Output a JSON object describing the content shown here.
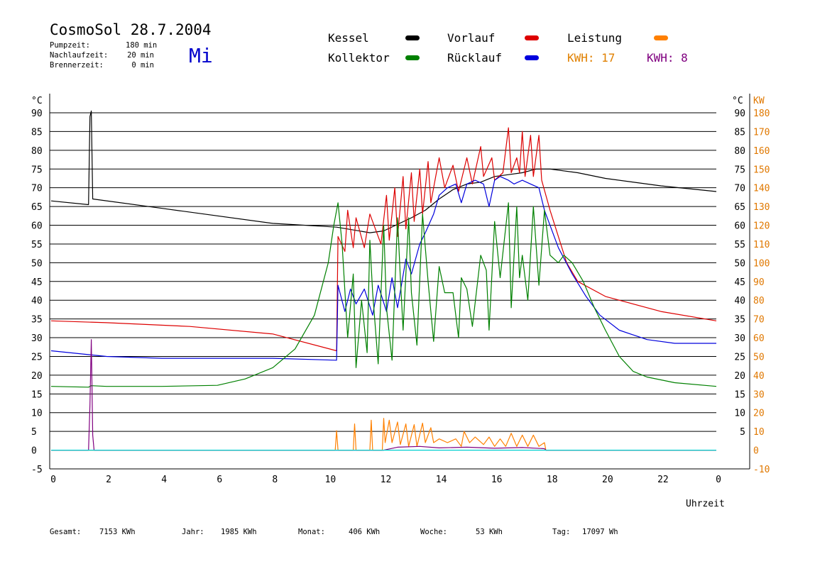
{
  "header": {
    "title": "CosmoSol 28.7.2004",
    "day": "Mi",
    "params": [
      {
        "label": "Pumpzeit:",
        "value": "180 min"
      },
      {
        "label": "Nachlaufzeit:",
        "value": "20 min"
      },
      {
        "label": "Brennerzeit:",
        "value": "0 min"
      }
    ]
  },
  "legend": {
    "kessel": "Kessel",
    "vorlauf": "Vorlauf",
    "leistung": "Leistung",
    "kollektor": "Kollektor",
    "ruecklauf": "Rücklauf",
    "kwh1": "KWH: 17",
    "kwh2": "KWH: 8"
  },
  "footer": {
    "gesamt_label": "Gesamt:",
    "gesamt_value": "7153 KWh",
    "jahr_label": "Jahr:",
    "jahr_value": "1985 KWh",
    "monat_label": "Monat:",
    "monat_value": "406 KWh",
    "woche_label": "Woche:",
    "woche_value": "53 KWh",
    "tag_label": "Tag:",
    "tag_value": "17097 Wh"
  },
  "colors": {
    "kessel": "#000000",
    "vorlauf": "#dd0000",
    "leistung": "#ff8000",
    "kollektor": "#008000",
    "ruecklauf": "#0000dd",
    "kwh2": "#800080",
    "baseline": "#00d0d0",
    "right_axis": "#e07800"
  },
  "chart_data": {
    "type": "line",
    "xlabel": "Uhrzeit",
    "ylabel_left": "°C",
    "ylabel_right": "KW",
    "xlim": [
      0,
      24
    ],
    "ylim_left": [
      -5,
      90
    ],
    "ylim_right": [
      -10,
      180
    ],
    "x_ticks": [
      "0",
      "2",
      "4",
      "6",
      "8",
      "10",
      "12",
      "14",
      "16",
      "18",
      "20",
      "22",
      "0"
    ],
    "y_ticks_left": [
      "90",
      "85",
      "80",
      "75",
      "70",
      "65",
      "60",
      "55",
      "50",
      "45",
      "40",
      "35",
      "30",
      "25",
      "20",
      "15",
      "10",
      "5",
      "0",
      "-5"
    ],
    "y_ticks_right_c": [
      "90",
      "85",
      "80",
      "75",
      "70",
      "65",
      "60",
      "55",
      "50",
      "45",
      "40",
      "35",
      "30",
      "25",
      "20",
      "15",
      "10",
      "5"
    ],
    "y_ticks_right_kw": [
      "180",
      "170",
      "160",
      "150",
      "140",
      "130",
      "120",
      "110",
      "100",
      "90",
      "80",
      "70",
      "60",
      "50",
      "40",
      "30",
      "20",
      "10",
      "0",
      "-10"
    ],
    "grid": true,
    "series": [
      {
        "name": "Kessel",
        "color": "#000000",
        "points": [
          [
            0,
            66.5
          ],
          [
            1.35,
            65.5
          ],
          [
            1.4,
            89
          ],
          [
            1.45,
            90.5
          ],
          [
            1.5,
            67
          ],
          [
            4,
            64.5
          ],
          [
            8,
            60.5
          ],
          [
            10.3,
            59.5
          ],
          [
            11.5,
            58
          ],
          [
            12,
            58.5
          ],
          [
            13,
            62
          ],
          [
            13.5,
            64
          ],
          [
            14,
            67
          ],
          [
            14.5,
            69.5
          ],
          [
            15,
            71
          ],
          [
            15.5,
            71.5
          ],
          [
            16,
            73
          ],
          [
            16.5,
            73.5
          ],
          [
            17,
            74
          ],
          [
            17.5,
            75
          ],
          [
            18,
            75
          ],
          [
            19,
            74
          ],
          [
            20,
            72.5
          ],
          [
            22,
            70.5
          ],
          [
            24,
            69
          ]
        ]
      },
      {
        "name": "Vorlauf",
        "color": "#dd0000",
        "points": [
          [
            0,
            34.5
          ],
          [
            2,
            34
          ],
          [
            5,
            33
          ],
          [
            8,
            31
          ],
          [
            10.3,
            26.5
          ],
          [
            10.35,
            57
          ],
          [
            10.6,
            53
          ],
          [
            10.7,
            64
          ],
          [
            10.9,
            54
          ],
          [
            11,
            62
          ],
          [
            11.3,
            54
          ],
          [
            11.5,
            63
          ],
          [
            11.9,
            55
          ],
          [
            12.1,
            68
          ],
          [
            12.2,
            56
          ],
          [
            12.4,
            70
          ],
          [
            12.5,
            57
          ],
          [
            12.7,
            73
          ],
          [
            12.8,
            59
          ],
          [
            13,
            74
          ],
          [
            13.1,
            61
          ],
          [
            13.3,
            75
          ],
          [
            13.4,
            63
          ],
          [
            13.6,
            77
          ],
          [
            13.7,
            66
          ],
          [
            14,
            78
          ],
          [
            14.2,
            70
          ],
          [
            14.5,
            76
          ],
          [
            14.7,
            69
          ],
          [
            15,
            78
          ],
          [
            15.2,
            71
          ],
          [
            15.5,
            81
          ],
          [
            15.6,
            73
          ],
          [
            15.9,
            78
          ],
          [
            16,
            72
          ],
          [
            16.3,
            74
          ],
          [
            16.5,
            86
          ],
          [
            16.6,
            74
          ],
          [
            16.8,
            78
          ],
          [
            16.9,
            74
          ],
          [
            17,
            85
          ],
          [
            17.1,
            73
          ],
          [
            17.3,
            84
          ],
          [
            17.4,
            73
          ],
          [
            17.6,
            84
          ],
          [
            17.7,
            72
          ],
          [
            18,
            64
          ],
          [
            18.3,
            57
          ],
          [
            18.6,
            50
          ],
          [
            19,
            45
          ],
          [
            20,
            41
          ],
          [
            22,
            37
          ],
          [
            24,
            34.5
          ]
        ]
      },
      {
        "name": "Rücklauf",
        "color": "#0000dd",
        "points": [
          [
            0,
            26.5
          ],
          [
            2,
            25
          ],
          [
            4,
            24.5
          ],
          [
            8,
            24.5
          ],
          [
            10.3,
            24
          ],
          [
            10.35,
            44
          ],
          [
            10.6,
            37
          ],
          [
            10.8,
            43
          ],
          [
            11,
            39
          ],
          [
            11.3,
            43
          ],
          [
            11.6,
            36
          ],
          [
            11.8,
            44
          ],
          [
            12.1,
            37
          ],
          [
            12.3,
            46
          ],
          [
            12.5,
            38
          ],
          [
            12.8,
            51
          ],
          [
            13,
            47
          ],
          [
            13.3,
            55
          ],
          [
            13.5,
            58
          ],
          [
            13.8,
            63
          ],
          [
            14,
            68
          ],
          [
            14.3,
            70
          ],
          [
            14.6,
            71
          ],
          [
            14.8,
            66
          ],
          [
            15,
            71
          ],
          [
            15.3,
            72
          ],
          [
            15.6,
            71
          ],
          [
            15.8,
            65
          ],
          [
            16,
            72
          ],
          [
            16.2,
            73
          ],
          [
            16.5,
            72
          ],
          [
            16.7,
            71
          ],
          [
            17,
            72
          ],
          [
            17.3,
            71
          ],
          [
            17.6,
            70
          ],
          [
            17.8,
            64
          ],
          [
            18.3,
            54
          ],
          [
            18.8,
            47
          ],
          [
            19.3,
            41
          ],
          [
            19.8,
            36
          ],
          [
            20.5,
            32
          ],
          [
            21.5,
            29.5
          ],
          [
            22.5,
            28.5
          ],
          [
            24,
            28.5
          ]
        ]
      },
      {
        "name": "Kollektor",
        "color": "#008000",
        "points": [
          [
            0,
            17
          ],
          [
            1.35,
            16.8
          ],
          [
            1.45,
            17.2
          ],
          [
            2,
            17
          ],
          [
            4,
            17
          ],
          [
            6,
            17.3
          ],
          [
            7,
            19
          ],
          [
            8,
            22
          ],
          [
            8.8,
            27
          ],
          [
            9.5,
            36
          ],
          [
            10,
            50
          ],
          [
            10.2,
            60
          ],
          [
            10.35,
            66
          ],
          [
            10.5,
            55
          ],
          [
            10.7,
            30
          ],
          [
            10.9,
            47
          ],
          [
            11,
            22
          ],
          [
            11.2,
            40
          ],
          [
            11.4,
            26
          ],
          [
            11.5,
            56
          ],
          [
            11.6,
            42
          ],
          [
            11.8,
            23
          ],
          [
            12,
            60
          ],
          [
            12.1,
            38
          ],
          [
            12.3,
            24
          ],
          [
            12.5,
            62
          ],
          [
            12.6,
            46
          ],
          [
            12.7,
            32
          ],
          [
            12.9,
            62
          ],
          [
            13,
            42
          ],
          [
            13.2,
            28
          ],
          [
            13.4,
            63
          ],
          [
            13.6,
            45
          ],
          [
            13.8,
            29
          ],
          [
            14,
            49
          ],
          [
            14.2,
            42
          ],
          [
            14.5,
            42
          ],
          [
            14.7,
            30
          ],
          [
            14.8,
            46
          ],
          [
            15,
            43
          ],
          [
            15.2,
            33
          ],
          [
            15.5,
            52
          ],
          [
            15.7,
            48
          ],
          [
            15.8,
            32
          ],
          [
            16,
            61
          ],
          [
            16.2,
            46
          ],
          [
            16.5,
            66
          ],
          [
            16.6,
            38
          ],
          [
            16.8,
            65
          ],
          [
            16.9,
            46
          ],
          [
            17,
            52
          ],
          [
            17.2,
            40
          ],
          [
            17.4,
            65
          ],
          [
            17.6,
            44
          ],
          [
            17.8,
            64
          ],
          [
            18,
            52
          ],
          [
            18.3,
            50
          ],
          [
            18.5,
            52
          ],
          [
            18.8,
            50
          ],
          [
            19.2,
            45
          ],
          [
            19.6,
            38
          ],
          [
            20,
            32
          ],
          [
            20.5,
            25
          ],
          [
            21,
            21
          ],
          [
            21.5,
            19.5
          ],
          [
            22.5,
            18
          ],
          [
            24,
            17
          ]
        ]
      },
      {
        "name": "Leistung",
        "color": "#ff8000",
        "points": [
          [
            0,
            0
          ],
          [
            10.25,
            0
          ],
          [
            10.3,
            5.2
          ],
          [
            10.35,
            0
          ],
          [
            10.9,
            0
          ],
          [
            10.95,
            7
          ],
          [
            11.0,
            0
          ],
          [
            11.5,
            0
          ],
          [
            11.55,
            8
          ],
          [
            11.6,
            0
          ],
          [
            11.95,
            0
          ],
          [
            12.0,
            8.5
          ],
          [
            12.05,
            2
          ],
          [
            12.2,
            8
          ],
          [
            12.3,
            2
          ],
          [
            12.5,
            7.5
          ],
          [
            12.6,
            1.5
          ],
          [
            12.8,
            7
          ],
          [
            12.9,
            1
          ],
          [
            13.1,
            6.8
          ],
          [
            13.2,
            1
          ],
          [
            13.4,
            7.2
          ],
          [
            13.5,
            2
          ],
          [
            13.7,
            6
          ],
          [
            13.8,
            2
          ],
          [
            14,
            3
          ],
          [
            14.3,
            2
          ],
          [
            14.6,
            3
          ],
          [
            14.8,
            1
          ],
          [
            14.9,
            5
          ],
          [
            15.1,
            2
          ],
          [
            15.3,
            3.5
          ],
          [
            15.6,
            1.5
          ],
          [
            15.8,
            3.5
          ],
          [
            16,
            1
          ],
          [
            16.2,
            3
          ],
          [
            16.4,
            1
          ],
          [
            16.6,
            4.5
          ],
          [
            16.8,
            1
          ],
          [
            17,
            4
          ],
          [
            17.2,
            1
          ],
          [
            17.4,
            4
          ],
          [
            17.6,
            1
          ],
          [
            17.8,
            2
          ],
          [
            17.85,
            0
          ],
          [
            24,
            0
          ]
        ]
      },
      {
        "name": "KWH 8",
        "color": "#800080",
        "points": [
          [
            0,
            0
          ],
          [
            1.35,
            0
          ],
          [
            1.4,
            12
          ],
          [
            1.45,
            29.5
          ],
          [
            1.5,
            4
          ],
          [
            1.55,
            0
          ],
          [
            12,
            0
          ],
          [
            12.5,
            0.8
          ],
          [
            13.3,
            1
          ],
          [
            14,
            0.6
          ],
          [
            15,
            0.8
          ],
          [
            16,
            0.5
          ],
          [
            17,
            0.7
          ],
          [
            17.8,
            0.4
          ],
          [
            17.85,
            0
          ],
          [
            24,
            0
          ]
        ]
      },
      {
        "name": "",
        "color": "#00d0d0",
        "points": [
          [
            0,
            0
          ],
          [
            24,
            0
          ]
        ]
      }
    ]
  }
}
